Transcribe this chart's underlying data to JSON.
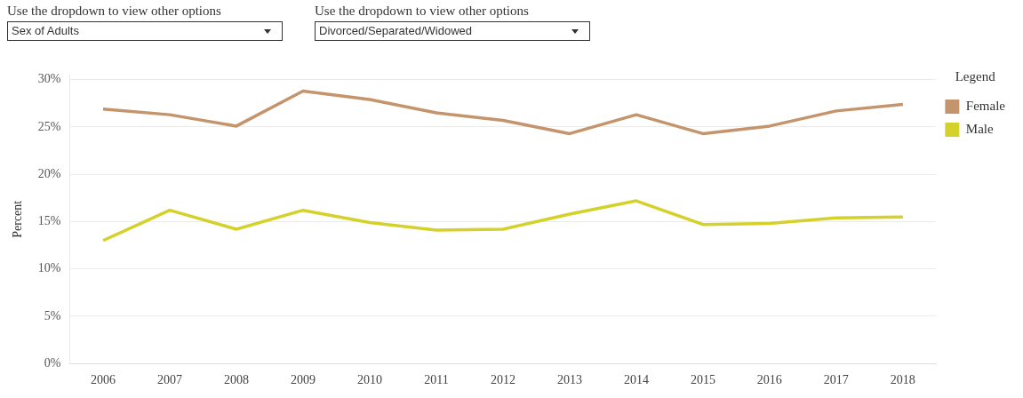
{
  "chart_data": {
    "type": "line",
    "ylabel": "Percent",
    "legend_title": "Legend",
    "legend": "top right",
    "grid": "y",
    "categories": [
      "2006",
      "2007",
      "2008",
      "2009",
      "2010",
      "2011",
      "2012",
      "2013",
      "2014",
      "2015",
      "2016",
      "2017",
      "2018"
    ],
    "ylim": [
      0,
      30.5
    ],
    "yticks": [
      {
        "value": 0,
        "label": "0%"
      },
      {
        "value": 5,
        "label": "5%"
      },
      {
        "value": 10,
        "label": "10%"
      },
      {
        "value": 15,
        "label": "15%"
      },
      {
        "value": 20,
        "label": "20%"
      },
      {
        "value": 25,
        "label": "25%"
      },
      {
        "value": 30,
        "label": "30%"
      }
    ],
    "marker": "none",
    "line_style": "solid",
    "annotations": [
      "Use the dropdown to view other options",
      "Sex of Adults",
      "Use the dropdown to view other options",
      "Divorced/Separated/Widowed"
    ],
    "series": [
      {
        "name": "Female",
        "color": "#c4956c",
        "values": [
          26.9,
          26.3,
          25.1,
          28.8,
          27.9,
          26.5,
          25.7,
          24.3,
          26.3,
          24.3,
          25.1,
          26.7,
          27.4
        ]
      },
      {
        "name": "Male",
        "color": "#d4d22a",
        "values": [
          13.0,
          16.2,
          14.2,
          16.2,
          14.9,
          14.1,
          14.2,
          15.8,
          17.2,
          14.7,
          14.8,
          15.4,
          15.5
        ]
      }
    ]
  }
}
